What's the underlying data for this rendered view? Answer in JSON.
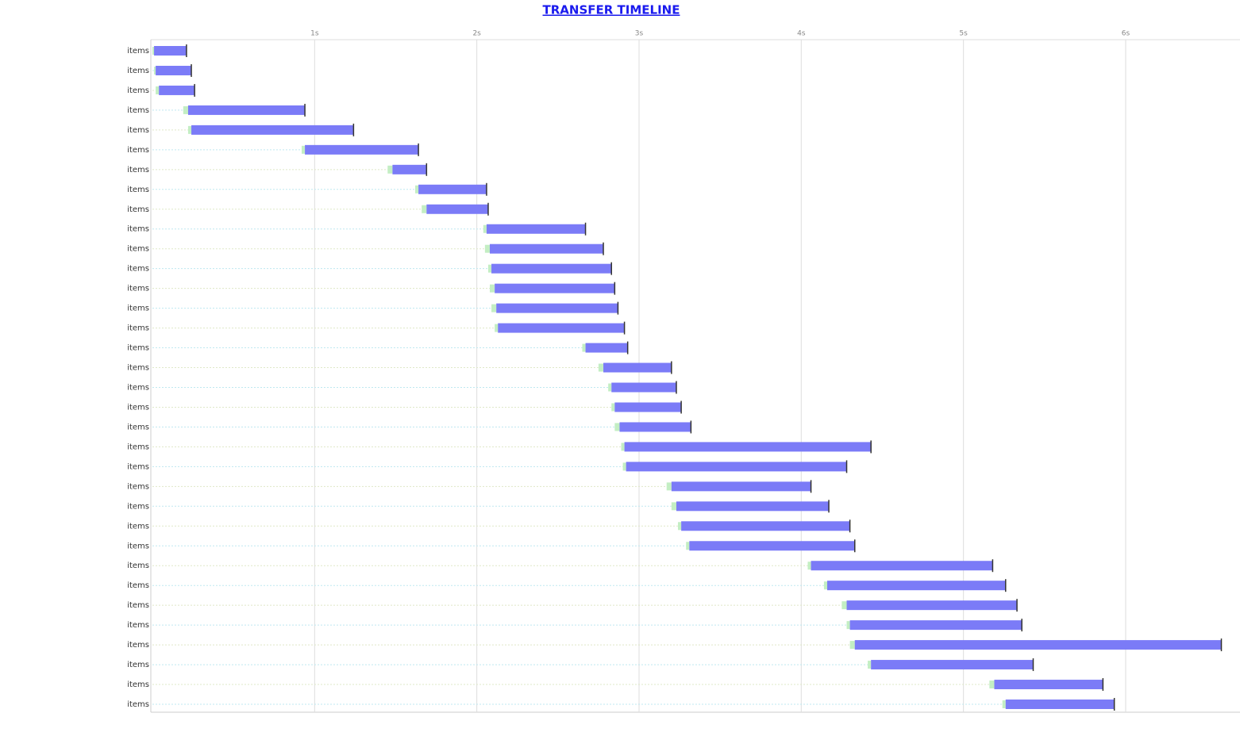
{
  "chart_data": {
    "type": "gantt",
    "title": "TRANSFER TIMELINE",
    "categories": [
      "items",
      "items",
      "items",
      "items",
      "items",
      "items",
      "items",
      "items",
      "items",
      "items",
      "items",
      "items",
      "items",
      "items",
      "items",
      "items",
      "items",
      "items",
      "items",
      "items",
      "items",
      "items",
      "items",
      "items",
      "items",
      "items",
      "items",
      "items",
      "items",
      "items",
      "items",
      "items",
      "items",
      "items"
    ],
    "queued": [
      0.0,
      0.01,
      0.02,
      0.19,
      0.22,
      0.92,
      1.45,
      1.62,
      1.66,
      2.04,
      2.05,
      2.07,
      2.08,
      2.09,
      2.11,
      2.65,
      2.75,
      2.81,
      2.83,
      2.85,
      2.89,
      2.9,
      3.17,
      3.2,
      3.24,
      3.29,
      4.04,
      4.14,
      4.25,
      4.28,
      4.3,
      4.41,
      5.16,
      5.24
    ],
    "start": [
      0.01,
      0.02,
      0.04,
      0.22,
      0.24,
      0.94,
      1.48,
      1.64,
      1.69,
      2.06,
      2.08,
      2.09,
      2.11,
      2.12,
      2.13,
      2.67,
      2.78,
      2.83,
      2.85,
      2.88,
      2.91,
      2.92,
      3.2,
      3.23,
      3.26,
      3.31,
      4.06,
      4.16,
      4.28,
      4.3,
      4.33,
      4.43,
      5.19,
      5.26
    ],
    "end": [
      0.21,
      0.24,
      0.26,
      0.94,
      1.24,
      1.64,
      1.69,
      2.06,
      2.07,
      2.67,
      2.78,
      2.83,
      2.85,
      2.87,
      2.91,
      2.93,
      3.2,
      3.23,
      3.26,
      3.32,
      4.43,
      4.28,
      4.06,
      4.17,
      4.3,
      4.33,
      5.18,
      5.26,
      5.33,
      5.36,
      6.59,
      5.43,
      5.86,
      5.93
    ],
    "color": "#7b7bf7",
    "queued_color": "#9be39b",
    "xlim": [
      0,
      6.7
    ],
    "xticks": [
      {
        "value": 1,
        "label": "1s"
      },
      {
        "value": 2,
        "label": "2s"
      },
      {
        "value": 3,
        "label": "3s"
      },
      {
        "value": 4,
        "label": "4s"
      },
      {
        "value": 5,
        "label": "5s"
      },
      {
        "value": 6,
        "label": "6s"
      }
    ],
    "grid": true
  }
}
